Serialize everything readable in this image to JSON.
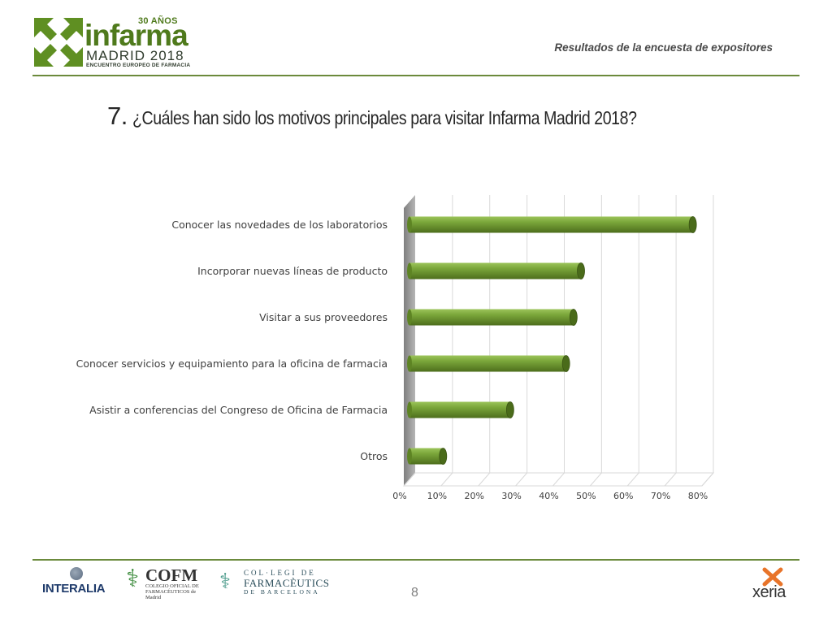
{
  "header": {
    "logo": {
      "anniversary": "30 AÑOS",
      "brand": "infarma",
      "city": "MADRID 2018",
      "tagline": "ENCUENTRO EUROPEO DE FARMACIA"
    },
    "subtitle": "Resultados de la encuesta de expositores"
  },
  "title": {
    "number": "7.",
    "text": "¿Cuáles han sido los motivos principales para visitar Infarma Madrid 2018?"
  },
  "chart_data": {
    "type": "bar",
    "orientation": "horizontal",
    "style": "3d-cylinder",
    "color": "#6f9a2e",
    "categories": [
      "Conocer las novedades de los laboratorios",
      "Incorporar nuevas líneas de producto",
      "Visitar a sus proveedores",
      "Conocer servicios y equipamiento para la oficina de farmacia",
      "Asistir a conferencias del Congreso de Oficina de Farmacia",
      "Otros"
    ],
    "values": [
      76,
      46,
      44,
      42,
      27,
      9
    ],
    "xlim": [
      0,
      80
    ],
    "xticks": [
      "0%",
      "10%",
      "20%",
      "30%",
      "40%",
      "50%",
      "60%",
      "70%",
      "80%"
    ],
    "grid": true,
    "legend": "none"
  },
  "footer": {
    "page_number": "8",
    "logos": {
      "interalia": "INTERALIA",
      "cofm_big": "COFM",
      "cofm_small": "COLEGIO OFICIAL DE FARMACÉUTICOS de Madrid",
      "coleg_line1": "COL·LEGI DE",
      "coleg_line2": "FARMACÈUTICS",
      "coleg_line3": "DE BARCELONA",
      "xeria": "xeria"
    }
  }
}
